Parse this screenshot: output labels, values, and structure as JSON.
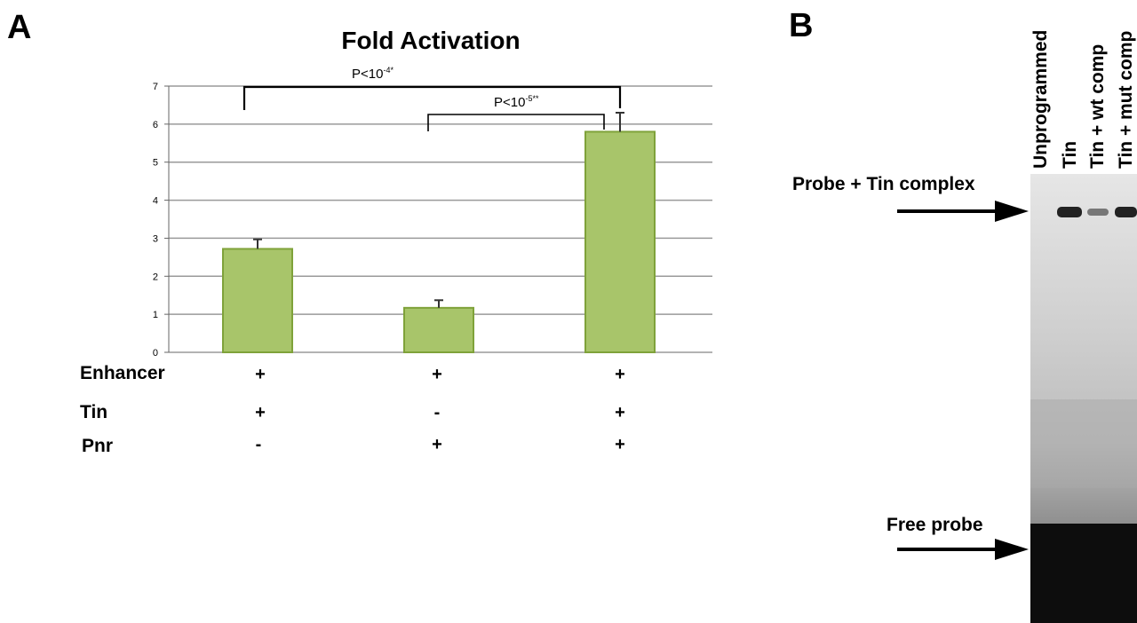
{
  "panelA": {
    "label": "A",
    "title": "Fold Activation",
    "row_labels": [
      "Enhancer",
      "Tin",
      "Pnr"
    ],
    "conditions": [
      [
        "+",
        "+",
        "+"
      ],
      [
        "+",
        "-",
        "+"
      ],
      [
        "-",
        "+",
        "+"
      ]
    ],
    "significance": [
      {
        "text": "P<10",
        "exp": "-4",
        "suffix": "*"
      },
      {
        "text": "P<10",
        "exp": "-5",
        "suffix": "**"
      }
    ]
  },
  "chart_data": {
    "type": "bar",
    "title": "Fold Activation",
    "categories": [
      "",
      "",
      ""
    ],
    "values": [
      2.72,
      1.17,
      5.8
    ],
    "errors": [
      0.25,
      0.2,
      0.5
    ],
    "ylim": [
      0,
      7
    ],
    "yticks": [
      0,
      1,
      2,
      3,
      4,
      5,
      6,
      7
    ],
    "grid": true,
    "bar_color": "#a8c56a",
    "bar_edge": "#7fa23a"
  },
  "panelB": {
    "label": "B",
    "lanes": [
      "Unprogrammed",
      "Tin",
      "Tin + wt comp",
      "Tin + mut comp"
    ],
    "arrows": [
      "Probe + Tin complex",
      "Free probe"
    ]
  }
}
